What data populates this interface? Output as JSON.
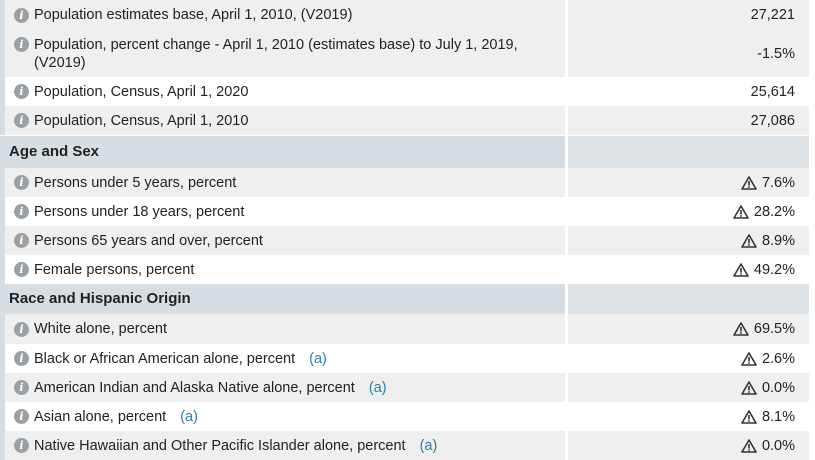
{
  "rows": [
    {
      "label": "Population estimates base, April 1, 2010, (V2019)",
      "value": "27,221"
    },
    {
      "label": "Population, percent change - April 1, 2010 (estimates base) to July 1, 2019, (V2019)",
      "value": "-1.5%"
    },
    {
      "label": "Population, Census, April 1, 2020",
      "value": "25,614"
    },
    {
      "label": "Population, Census, April 1, 2010",
      "value": "27,086"
    }
  ],
  "sections": [
    {
      "title": "Age and Sex"
    },
    {
      "title": "Race and Hispanic Origin"
    }
  ],
  "age_sex_rows": [
    {
      "label": "Persons under 5 years, percent",
      "value": "7.6%"
    },
    {
      "label": "Persons under 18 years, percent",
      "value": "28.2%"
    },
    {
      "label": "Persons 65 years and over, percent",
      "value": "8.9%"
    },
    {
      "label": "Female persons, percent",
      "value": "49.2%"
    }
  ],
  "race_rows": [
    {
      "label": "White alone, percent",
      "note": "",
      "value": "69.5%"
    },
    {
      "label": "Black or African American alone, percent",
      "note": "(a)",
      "value": "2.6%"
    },
    {
      "label": "American Indian and Alaska Native alone, percent",
      "note": "(a)",
      "value": "0.0%"
    },
    {
      "label": "Asian alone, percent",
      "note": "(a)",
      "value": "8.1%"
    },
    {
      "label": "Native Hawaiian and Other Pacific Islander alone, percent",
      "note": "(a)",
      "value": "0.0%"
    }
  ],
  "icons": {
    "info": "info-icon",
    "warning": "warning-triangle-icon"
  },
  "colors": {
    "section_bg": "#d6dee3",
    "row_shade": "#efefef",
    "note_link": "#2a7fa6",
    "info_icon": "#9aa0a4"
  }
}
